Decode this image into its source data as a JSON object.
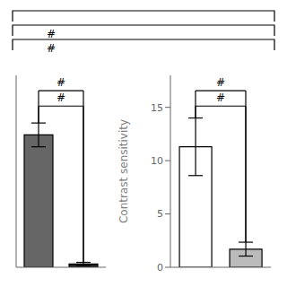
{
  "chart_data": [
    {
      "type": "bar",
      "categories": [
        null,
        null
      ],
      "values": [
        10.0,
        0.25
      ],
      "errors": [
        0.9,
        0.12
      ],
      "colors": [
        "#666666",
        "#222222"
      ],
      "ylim": [
        0,
        14.5
      ],
      "tick_labels": false,
      "annotations": [
        "#",
        "#"
      ]
    },
    {
      "type": "bar",
      "categories": [
        null,
        null
      ],
      "values": [
        11.3,
        1.7
      ],
      "errors": [
        2.7,
        0.65
      ],
      "colors": [
        "#ffffff",
        "#bbbbbb"
      ],
      "ylim": [
        0,
        18
      ],
      "yticks": [
        0,
        5,
        10,
        15
      ],
      "ylabel": "Contrast sensitivity",
      "tick_labels": "y",
      "annotations": [
        "#",
        "#"
      ]
    }
  ],
  "annotations": [
    "#",
    "#"
  ]
}
